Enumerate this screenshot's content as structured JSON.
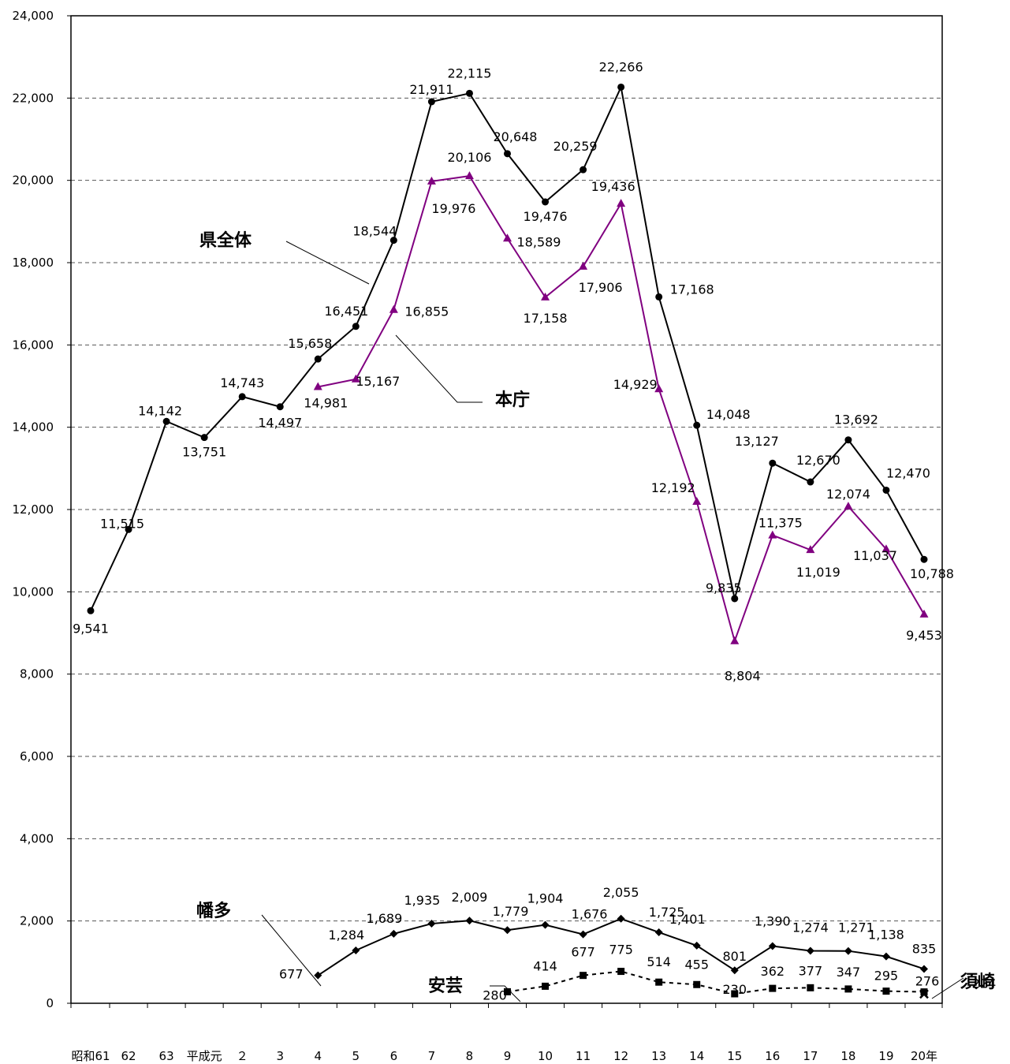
{
  "chart_data": {
    "type": "line",
    "categories": [
      "昭和61",
      "62",
      "63",
      "平成元",
      "２",
      "3",
      "4",
      "5",
      "6",
      "7",
      "8",
      "9",
      "10",
      "11",
      "12",
      "13",
      "14",
      "15",
      "16",
      "17",
      "18",
      "19",
      "20年"
    ],
    "ylim": [
      0,
      24000
    ],
    "yticks": [
      0,
      2000,
      4000,
      6000,
      8000,
      10000,
      12000,
      14000,
      16000,
      18000,
      20000,
      22000,
      24000
    ],
    "ytick_labels": [
      "0",
      "2,000",
      "4,000",
      "6,000",
      "8,000",
      "10,000",
      "12,000",
      "14,000",
      "16,000",
      "18,000",
      "20,000",
      "22,000",
      "24,000"
    ],
    "grid": true,
    "series": [
      {
        "name": "県全体",
        "color": "#000000",
        "marker": "circle",
        "values": [
          9541,
          11515,
          14142,
          13751,
          14743,
          14497,
          15658,
          16451,
          18544,
          21911,
          22115,
          20648,
          19476,
          20259,
          22266,
          17168,
          14048,
          9835,
          13127,
          12670,
          13692,
          12470,
          10788
        ],
        "value_labels": [
          "9,541",
          "11,515",
          "14,142",
          "13,751",
          "14,743",
          "14,497",
          "15,658",
          "16,451",
          "18,544",
          "21,911",
          "22,115",
          "20,648",
          "19,476",
          "20,259",
          "22,266",
          "17,168",
          "14,048",
          "9,835",
          "13,127",
          "12,670",
          "13,692",
          "12,470",
          "10,788"
        ]
      },
      {
        "name": "本庁",
        "color": "#800080",
        "marker": "triangle",
        "values": [
          null,
          null,
          null,
          null,
          null,
          null,
          14981,
          15167,
          16855,
          19976,
          20106,
          18589,
          17158,
          17906,
          19436,
          14929,
          12192,
          8804,
          11375,
          11019,
          12074,
          11037,
          9453
        ],
        "value_labels": [
          null,
          null,
          null,
          null,
          null,
          null,
          "14,981",
          "15,167",
          "16,855",
          "19,976",
          "20,106",
          "18,589",
          "17,158",
          "17,906",
          "19,436",
          "14,929",
          "12,192",
          "8,804",
          "11,375",
          "11,019",
          "12,074",
          "11,037",
          "9,453"
        ]
      },
      {
        "name": "幡多",
        "color": "#000000",
        "marker": "diamond",
        "values": [
          null,
          null,
          null,
          null,
          null,
          null,
          677,
          1284,
          1689,
          1935,
          2009,
          1779,
          1904,
          1676,
          2055,
          1725,
          1401,
          801,
          1390,
          1274,
          1271,
          1138,
          835
        ],
        "value_labels": [
          null,
          null,
          null,
          null,
          null,
          null,
          "677",
          "1,284",
          "1,689",
          "1,935",
          "2,009",
          "1,779",
          "1,904",
          "1,676",
          "2,055",
          "1,725",
          "1,401",
          "801",
          "1,390",
          "1,274",
          "1,271",
          "1,138",
          "835"
        ]
      },
      {
        "name": "安芸",
        "color": "#000000",
        "marker": "square",
        "dashed": true,
        "values": [
          null,
          null,
          null,
          null,
          null,
          null,
          null,
          null,
          null,
          null,
          null,
          280,
          414,
          677,
          775,
          514,
          455,
          230,
          362,
          377,
          347,
          295,
          276
        ],
        "value_labels": [
          null,
          null,
          null,
          null,
          null,
          null,
          null,
          null,
          null,
          null,
          null,
          "280",
          "414",
          "677",
          "775",
          "514",
          "455",
          "230",
          "362",
          "377",
          "347",
          "295",
          "276"
        ]
      },
      {
        "name": "須崎",
        "color": "#000000",
        "marker": "x",
        "values": [
          null,
          null,
          null,
          null,
          null,
          null,
          null,
          null,
          null,
          null,
          null,
          null,
          null,
          null,
          null,
          null,
          null,
          null,
          null,
          null,
          null,
          null,
          224
        ],
        "value_labels": [
          null,
          null,
          null,
          null,
          null,
          null,
          null,
          null,
          null,
          null,
          null,
          null,
          null,
          null,
          null,
          null,
          null,
          null,
          null,
          null,
          null,
          null,
          "224"
        ]
      }
    ]
  }
}
